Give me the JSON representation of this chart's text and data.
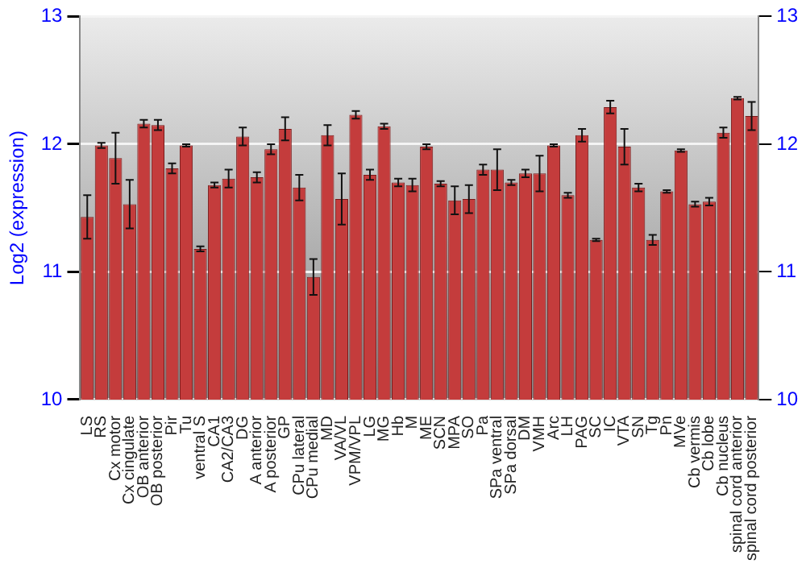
{
  "chart_data": {
    "type": "bar",
    "ylabel": "Log2 (expression)",
    "categories": [
      "LS",
      "RS",
      "Cx motor",
      "Cx cingulate",
      "OB anterior",
      "OB posterior",
      "Pir",
      "Tu",
      "ventral S",
      "CA1",
      "CA2/CA3",
      "DG",
      "A anterior",
      "A posterior",
      "GP",
      "CPu lateral",
      "CPu medial",
      "MD",
      "VA/VL",
      "VPM/VPL",
      "LG",
      "MG",
      "Hb",
      "M",
      "ME",
      "SCN",
      "MPA",
      "SO",
      "Pa",
      "SPa ventral",
      "SPa dorsal",
      "DM",
      "VMH",
      "Arc",
      "LH",
      "PAG",
      "SC",
      "IC",
      "VTA",
      "SN",
      "Tg",
      "Pn",
      "MVe",
      "Cb vermis",
      "Cb lobe",
      "Cb nucleus",
      "spinal cord anterior",
      "spinal cord posterior"
    ],
    "values": [
      11.43,
      11.99,
      11.89,
      11.53,
      12.16,
      12.15,
      11.81,
      11.99,
      11.18,
      11.68,
      11.73,
      12.06,
      11.74,
      11.96,
      12.12,
      11.66,
      10.96,
      12.07,
      11.57,
      12.23,
      11.76,
      12.14,
      11.7,
      11.68,
      11.98,
      11.69,
      11.56,
      11.57,
      11.8,
      11.8,
      11.7,
      11.77,
      11.77,
      11.99,
      11.6,
      12.07,
      11.25,
      12.29,
      11.98,
      11.66,
      11.25,
      11.63,
      11.95,
      11.53,
      11.55,
      12.09,
      12.36,
      12.22
    ],
    "errors": [
      0.17,
      0.02,
      0.2,
      0.19,
      0.03,
      0.04,
      0.04,
      0.01,
      0.02,
      0.02,
      0.07,
      0.07,
      0.04,
      0.04,
      0.09,
      0.1,
      0.14,
      0.08,
      0.2,
      0.03,
      0.04,
      0.02,
      0.03,
      0.05,
      0.02,
      0.02,
      0.11,
      0.11,
      0.04,
      0.16,
      0.02,
      0.03,
      0.14,
      0.01,
      0.02,
      0.05,
      0.01,
      0.05,
      0.14,
      0.03,
      0.04,
      0.01,
      0.01,
      0.02,
      0.03,
      0.04,
      0.01,
      0.11
    ],
    "color": "#c43c3c",
    "ylim": [
      10,
      13
    ],
    "yticks": [
      10,
      11,
      12,
      13
    ],
    "y2lim": [
      10,
      13
    ],
    "y2ticks": [
      10,
      11,
      12,
      13
    ],
    "grid": "y",
    "legend": false
  }
}
